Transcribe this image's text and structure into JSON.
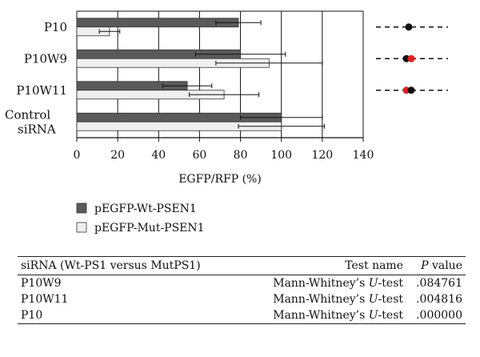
{
  "chart_data": {
    "type": "bar",
    "orientation": "horizontal",
    "categories": [
      "P10",
      "P10W9",
      "P10W11",
      "Control siRNA"
    ],
    "series": [
      {
        "name": "pEGFP-Wt-PSEN1",
        "values": [
          79,
          80,
          54,
          100
        ],
        "errors": [
          11,
          22,
          12,
          20
        ],
        "color": "#5a5a5a"
      },
      {
        "name": "pEGFP-Mut-PSEN1",
        "values": [
          16,
          94,
          72,
          100
        ],
        "errors": [
          5,
          26,
          17,
          21
        ],
        "color": "#efefef"
      }
    ],
    "xlabel": "EGFP/RFP (%)",
    "xlim": [
      0,
      140
    ],
    "xticks": [
      0,
      20,
      40,
      60,
      80,
      100,
      120,
      140
    ],
    "grid": "vertical",
    "legend_position": "bottom-left",
    "markers": [
      {
        "category": "P10",
        "dots": [
          "black"
        ]
      },
      {
        "category": "P10W9",
        "dots": [
          "black",
          "red"
        ]
      },
      {
        "category": "P10W11",
        "dots": [
          "red",
          "black"
        ]
      }
    ]
  },
  "table": {
    "headers": {
      "sirna": "siRNA (Wt-PS1 versus MutPS1)",
      "test": "Test name",
      "p_italic": "P",
      "p_rest": " value"
    },
    "rows": [
      {
        "sirna": "P10W9",
        "test_pre": "Mann-Whitney’s ",
        "test_u": "U",
        "test_post": "-test",
        "p": ".084761"
      },
      {
        "sirna": "P10W11",
        "test_pre": "Mann-Whitney’s ",
        "test_u": "U",
        "test_post": "-test",
        "p": ".004816"
      },
      {
        "sirna": "P10",
        "test_pre": "Mann-Whitney’s ",
        "test_u": "U",
        "test_post": "-test",
        "p": ".000000"
      }
    ]
  },
  "colors": {
    "marker_black": "#111111",
    "marker_red": "#e02020",
    "axis": "#111111"
  }
}
